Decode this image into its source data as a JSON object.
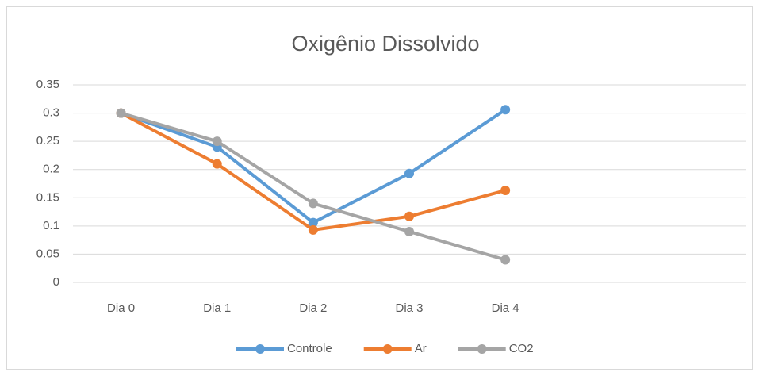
{
  "chart_data": {
    "type": "line",
    "title": "Oxigênio Dissolvido",
    "categories": [
      "Dia 0",
      "Dia 1",
      "Dia 2",
      "Dia 3",
      "Dia 4",
      null,
      null
    ],
    "series": [
      {
        "name": "Controle",
        "color": "#5b9bd5",
        "values": [
          0.3,
          0.24,
          0.106,
          0.193,
          0.306,
          null,
          null
        ]
      },
      {
        "name": "Ar",
        "color": "#ed7d31",
        "values": [
          0.3,
          0.21,
          0.093,
          0.117,
          0.163,
          null,
          null
        ]
      },
      {
        "name": "CO2",
        "color": "#a5a5a5",
        "values": [
          0.3,
          0.25,
          0.14,
          0.09,
          0.04,
          null,
          null
        ]
      }
    ],
    "ylim": [
      0,
      0.35
    ],
    "yticks": [
      0,
      0.05,
      0.1,
      0.15,
      0.2,
      0.25,
      0.3,
      0.35
    ],
    "grid": true,
    "legend": "bottom"
  }
}
